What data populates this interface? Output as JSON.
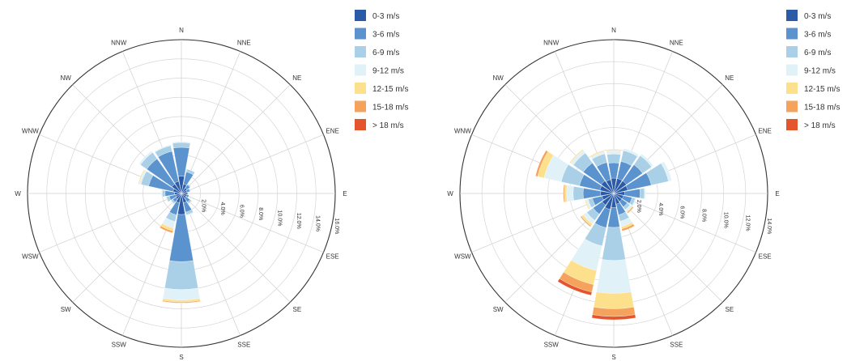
{
  "chart_data": [
    {
      "type": "windrose",
      "directions": [
        "N",
        "NNE",
        "NE",
        "ENE",
        "E",
        "ESE",
        "SE",
        "SSE",
        "S",
        "SSW",
        "SW",
        "WSW",
        "W",
        "WNW",
        "NW",
        "NNW"
      ],
      "direction_labels": [
        "N",
        "NNE",
        "NE",
        "ENE",
        "E",
        "ESE",
        "SE",
        "SSE",
        "S",
        "SSW",
        "SW",
        "WSW",
        "W",
        "WNW",
        "NW",
        "NNW"
      ],
      "radial_max": 16,
      "radial_ticks": [
        2,
        4,
        6,
        8,
        10,
        12,
        14,
        16
      ],
      "radial_tick_labels": [
        "2.0%",
        "4.0%",
        "6.0%",
        "8.0%",
        "10.0%",
        "12.0%",
        "14.0%",
        "16.0%"
      ],
      "speed_bins": [
        "0-3 m/s",
        "3-6 m/s",
        "6-9 m/s",
        "9-12 m/s",
        "12-15 m/s",
        "15-18 m/s",
        "> 18 m/s"
      ],
      "colors": [
        "#2b5aa6",
        "#5b93cf",
        "#a9d0e6",
        "#e0f1f8",
        "#fde08c",
        "#f5a35c",
        "#e4542d"
      ],
      "series": [
        {
          "name": "0-3 m/s",
          "values": [
            1.8,
            1.0,
            0.7,
            0.6,
            0.6,
            0.6,
            0.6,
            1.0,
            2.2,
            1.0,
            0.7,
            0.6,
            0.7,
            0.9,
            1.2,
            1.3
          ]
        },
        {
          "name": "3-6 m/s",
          "values": [
            3.0,
            1.3,
            0.4,
            0.3,
            0.1,
            0.2,
            0.5,
            1.0,
            4.9,
            1.3,
            0.4,
            0.7,
            1.0,
            2.6,
            3.2,
            3.2
          ]
        },
        {
          "name": "6-9 m/s",
          "values": [
            0.5,
            0.3,
            0.1,
            0.1,
            0,
            0,
            0.2,
            0.3,
            2.9,
            0.7,
            0.2,
            0.3,
            0.3,
            0.8,
            0.8,
            0.6
          ]
        },
        {
          "name": "9-12 m/s",
          "values": [
            0.1,
            0,
            0,
            0,
            0,
            0,
            0.1,
            0.1,
            1.1,
            0.7,
            0.1,
            0.1,
            0.1,
            0.2,
            0.2,
            0.1
          ]
        },
        {
          "name": "12-15 m/s",
          "values": [
            0,
            0,
            0,
            0,
            0,
            0,
            0,
            0,
            0.2,
            0.3,
            0,
            0,
            0,
            0.1,
            0,
            0
          ]
        },
        {
          "name": "15-18 m/s",
          "values": [
            0,
            0,
            0,
            0,
            0,
            0,
            0,
            0,
            0.1,
            0.2,
            0,
            0,
            0,
            0,
            0,
            0
          ]
        },
        {
          "name": "> 18 m/s",
          "values": [
            0,
            0,
            0,
            0,
            0,
            0,
            0,
            0,
            0,
            0,
            0,
            0,
            0,
            0,
            0,
            0
          ]
        }
      ],
      "legend_position": "right",
      "grid": true
    },
    {
      "type": "windrose",
      "directions": [
        "N",
        "NNE",
        "NE",
        "ENE",
        "E",
        "ESE",
        "SE",
        "SSE",
        "S",
        "SSW",
        "SW",
        "WSW",
        "W",
        "WNW",
        "NW",
        "NNW"
      ],
      "direction_labels": [
        "N",
        "NNE",
        "NE",
        "ENE",
        "E",
        "ESE",
        "SE",
        "SSE",
        "S",
        "SSW",
        "SW",
        "WSW",
        "W",
        "WNW",
        "NW",
        "NNW"
      ],
      "radial_max": 14,
      "radial_ticks": [
        2,
        4,
        6,
        8,
        10,
        12,
        14
      ],
      "radial_tick_labels": [
        "2.0%",
        "4.0%",
        "6.0%",
        "8.0%",
        "10.0%",
        "12.0%",
        "14.0%"
      ],
      "speed_bins": [
        "0-3 m/s",
        "3-6 m/s",
        "6-9 m/s",
        "9-12 m/s",
        "12-15 m/s",
        "15-18 m/s",
        "> 18 m/s"
      ],
      "colors": [
        "#2b5aa6",
        "#5b93cf",
        "#a9d0e6",
        "#e0f1f8",
        "#fde08c",
        "#f5a35c",
        "#e4542d"
      ],
      "series": [
        {
          "name": "0-3 m/s",
          "values": [
            1.4,
            1.4,
            1.4,
            1.3,
            1.0,
            0.9,
            0.9,
            1.0,
            1.3,
            1.5,
            1.3,
            1.1,
            1.2,
            1.3,
            1.4,
            1.3
          ]
        },
        {
          "name": "3-6 m/s",
          "values": [
            1.4,
            1.6,
            1.8,
            2.2,
            1.4,
            0.8,
            0.6,
            1.0,
            1.8,
            1.7,
            1.0,
            0.9,
            1.6,
            1.9,
            2.0,
            1.6
          ]
        },
        {
          "name": "6-9 m/s",
          "values": [
            0.8,
            1.0,
            1.0,
            1.6,
            0.4,
            0.3,
            0.3,
            0.6,
            3.0,
            1.7,
            0.7,
            0.4,
            0.9,
            1.7,
            1.1,
            0.8
          ]
        },
        {
          "name": "9-12 m/s",
          "values": [
            0.3,
            0.2,
            0.2,
            0.3,
            0.1,
            0.1,
            0.2,
            0.5,
            3.0,
            2.3,
            0.4,
            0.2,
            0.6,
            1.6,
            0.3,
            0.2
          ]
        },
        {
          "name": "12-15 m/s",
          "values": [
            0.1,
            0,
            0,
            0,
            0,
            0,
            0.1,
            0.2,
            1.4,
            1.3,
            0.2,
            0.1,
            0.2,
            0.6,
            0.1,
            0.1
          ]
        },
        {
          "name": "15-18 m/s",
          "values": [
            0,
            0,
            0,
            0,
            0,
            0,
            0.1,
            0.2,
            0.7,
            0.7,
            0.1,
            0,
            0.1,
            0.2,
            0,
            0
          ]
        },
        {
          "name": "> 18 m/s",
          "values": [
            0,
            0,
            0,
            0,
            0,
            0,
            0,
            0,
            0.3,
            0.3,
            0,
            0,
            0,
            0,
            0,
            0
          ]
        }
      ],
      "legend_position": "right",
      "grid": true
    }
  ]
}
